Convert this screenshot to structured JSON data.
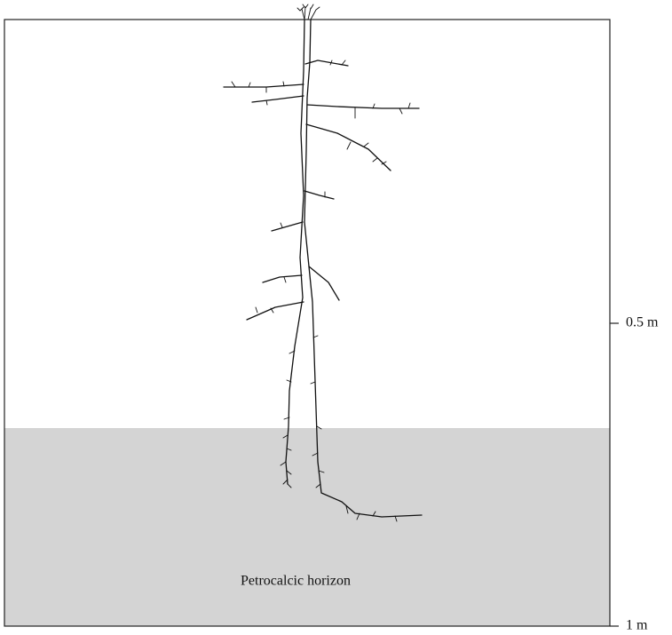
{
  "labels": {
    "depth_mid": "0.5 m",
    "depth_bottom": "1 m",
    "horizon": "Petrocalcic horizon"
  }
}
